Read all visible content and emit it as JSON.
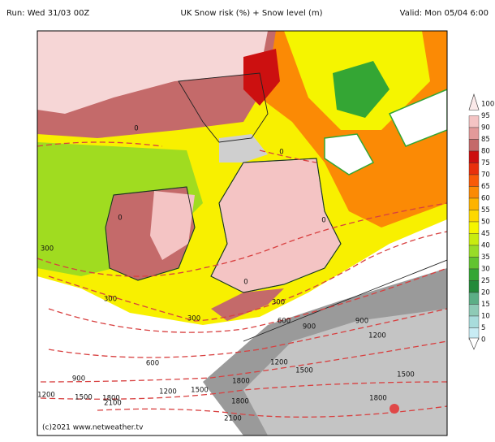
{
  "header": {
    "run": "Run: Wed 31/03 00Z",
    "title": "UK Snow risk (%) + Snow level (m)",
    "valid": "Valid: Mon 05/04 6:00"
  },
  "legend": {
    "levels": [
      {
        "value": 100,
        "color": "#fbeaea"
      },
      {
        "value": 95,
        "color": "#f4c4c4"
      },
      {
        "value": 90,
        "color": "#e39a9a"
      },
      {
        "value": 85,
        "color": "#c46a6a"
      },
      {
        "value": 80,
        "color": "#cc1010"
      },
      {
        "value": 75,
        "color": "#e8300c"
      },
      {
        "value": 70,
        "color": "#f85a08"
      },
      {
        "value": 65,
        "color": "#fb8a05"
      },
      {
        "value": 60,
        "color": "#fdb300"
      },
      {
        "value": 55,
        "color": "#fdd800"
      },
      {
        "value": 50,
        "color": "#f5f500"
      },
      {
        "value": 45,
        "color": "#c8ec10"
      },
      {
        "value": 40,
        "color": "#98dc28"
      },
      {
        "value": 35,
        "color": "#62c430"
      },
      {
        "value": 30,
        "color": "#34a634"
      },
      {
        "value": 25,
        "color": "#248a3a"
      },
      {
        "value": 20,
        "color": "#5cae86"
      },
      {
        "value": 15,
        "color": "#8ecab6"
      },
      {
        "value": 10,
        "color": "#a8dcdc"
      },
      {
        "value": 5,
        "color": "#c8ecf4"
      },
      {
        "value": 0,
        "color": "#ffffff"
      }
    ]
  },
  "contour_labels": [
    0,
    0,
    0,
    0,
    0,
    300,
    300,
    300,
    300,
    600,
    900,
    900,
    1200,
    600,
    900,
    1200,
    1500,
    1500,
    1200,
    1500,
    1800,
    2100,
    1200,
    1500,
    1800,
    1800,
    2100,
    1800
  ],
  "footer": {
    "credit": "(c)2021 www.netweather.tv"
  }
}
